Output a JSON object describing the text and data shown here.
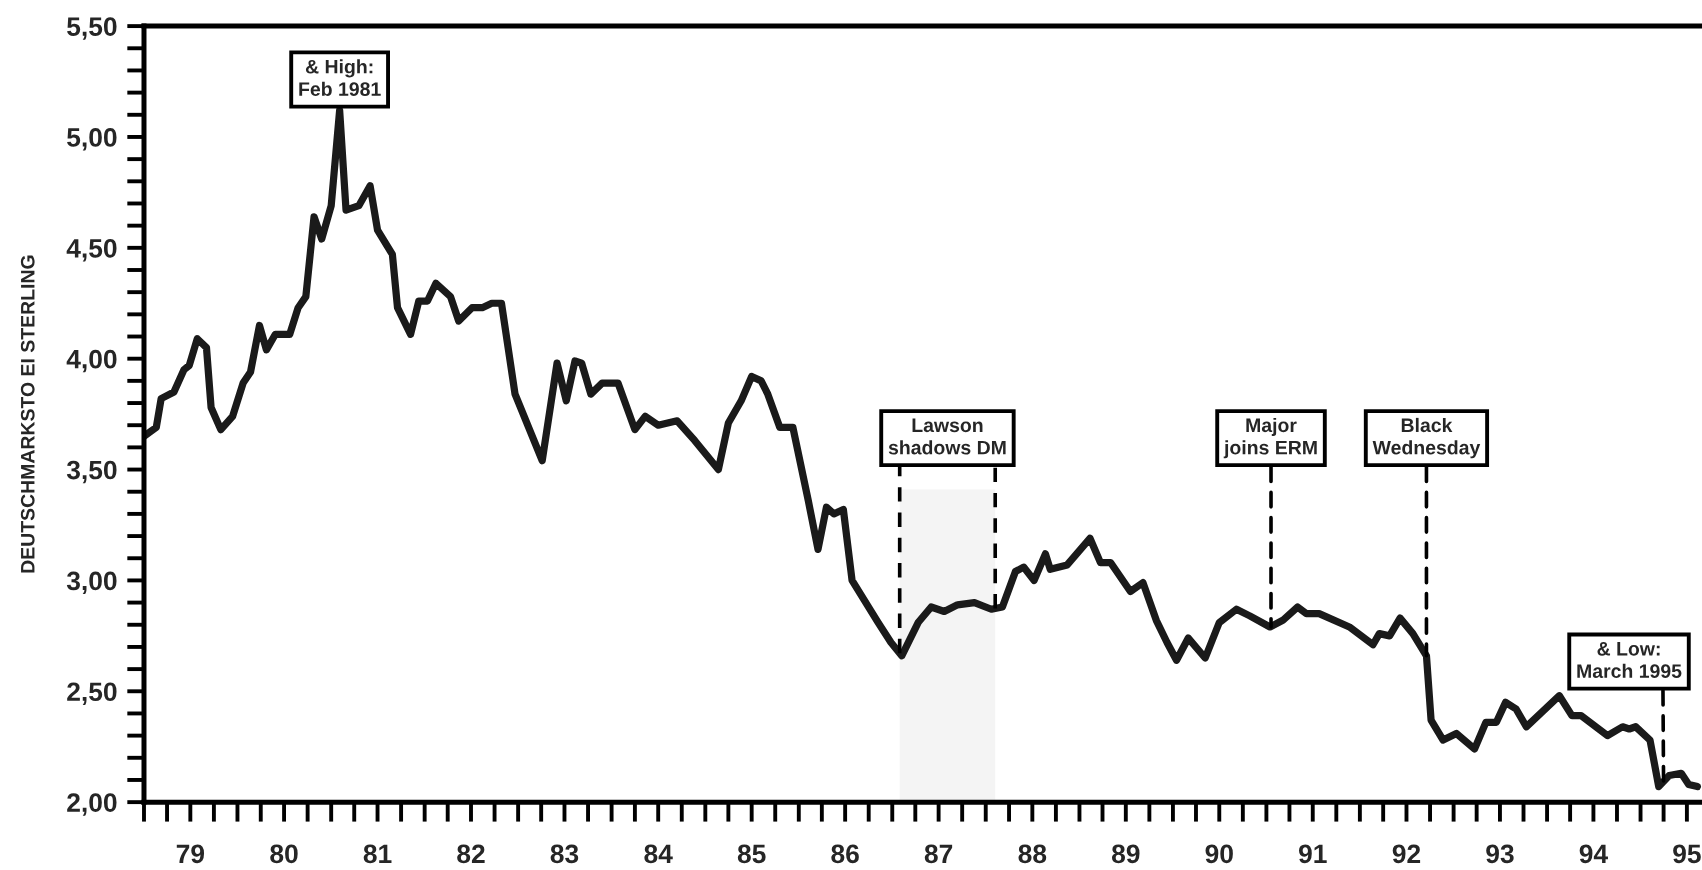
{
  "chart_data": {
    "type": "line",
    "ylabel": "DEUTSCHMARKSTO EI STERLING",
    "x": [
      "1979-01-01",
      "1979-02-18",
      "1979-03-09",
      "1979-04-28",
      "1979-06-06",
      "1979-06-27",
      "1979-07-28",
      "1979-09-02",
      "1979-09-20",
      "1979-10-28",
      "1979-12-13",
      "1980-01-23",
      "1980-02-21",
      "1980-03-27",
      "1980-04-23",
      "1980-05-28",
      "1980-07-23",
      "1980-08-25",
      "1980-09-24",
      "1980-10-26",
      "1980-11-25",
      "1981-01-01",
      "1981-02-03",
      "1981-02-28",
      "1981-04-19",
      "1981-06-02",
      "1981-07-01",
      "1981-08-28",
      "1981-09-17",
      "1981-11-07",
      "1981-12-09",
      "1982-01-12",
      "1982-02-14",
      "1982-04-12",
      "1982-05-14",
      "1982-07-05",
      "1982-08-14",
      "1982-09-20",
      "1982-10-28",
      "1982-12-20",
      "1983-04-05",
      "1983-06-02",
      "1983-07-08",
      "1983-08-11",
      "1983-09-06",
      "1983-10-12",
      "1983-11-25",
      "1984-01-26",
      "1984-04-01",
      "1984-05-11",
      "1984-07-01",
      "1984-09-13",
      "1984-11-21",
      "1985-02-21",
      "1985-04-01",
      "1985-05-21",
      "1985-07-01",
      "1985-08-07",
      "1985-09-02",
      "1985-10-19",
      "1985-12-09",
      "1986-02-07",
      "1986-03-17",
      "1986-04-19",
      "1986-05-18",
      "1986-06-24",
      "1986-07-28",
      "1986-11-07",
      "1986-12-27",
      "1987-02-07",
      "1987-04-12",
      "1987-06-02",
      "1987-07-23",
      "1987-09-13",
      "1987-11-18",
      "1988-01-23",
      "1988-03-06",
      "1988-04-26",
      "1988-05-28",
      "1988-07-08",
      "1988-08-21",
      "1988-09-09",
      "1988-11-14",
      "1989-02-11",
      "1989-03-24",
      "1989-05-03",
      "1989-07-19",
      "1989-09-06",
      "1989-10-28",
      "1989-12-09",
      "1990-01-15",
      "1990-03-02",
      "1990-05-07",
      "1990-07-01",
      "1990-09-06",
      "1990-10-28",
      "1991-01-15",
      "1991-03-06",
      "1991-05-03",
      "1991-06-06",
      "1991-07-26",
      "1991-11-21",
      "1992-02-21",
      "1992-03-17",
      "1992-04-26",
      "1992-06-06",
      "1992-07-26",
      "1992-09-17",
      "1992-10-05",
      "1992-11-21",
      "1993-01-12",
      "1993-03-24",
      "1993-05-07",
      "1993-06-17",
      "1993-07-23",
      "1993-09-02",
      "1993-10-12",
      "1994-02-18",
      "1994-04-08",
      "1994-05-14",
      "1994-08-25",
      "1994-10-23",
      "1994-11-18",
      "1994-12-13",
      "1995-02-07",
      "1995-03-13",
      "1995-04-23",
      "1995-06-09",
      "1995-07-08",
      "1995-08-11"
    ],
    "series": [
      {
        "color": "#1a1a1a",
        "values": [
          3.65,
          3.69,
          3.82,
          3.85,
          3.95,
          3.97,
          4.09,
          4.05,
          3.78,
          3.68,
          3.74,
          3.89,
          3.94,
          4.15,
          4.04,
          4.11,
          4.11,
          4.23,
          4.28,
          4.64,
          4.54,
          4.69,
          5.12,
          4.67,
          4.69,
          4.78,
          4.58,
          4.47,
          4.23,
          4.11,
          4.26,
          4.26,
          4.34,
          4.28,
          4.17,
          4.23,
          4.23,
          4.25,
          4.25,
          3.84,
          3.54,
          3.98,
          3.81,
          3.99,
          3.98,
          3.84,
          3.89,
          3.89,
          3.68,
          3.74,
          3.7,
          3.72,
          3.63,
          3.5,
          3.71,
          3.81,
          3.92,
          3.9,
          3.84,
          3.69,
          3.69,
          3.36,
          3.14,
          3.33,
          3.3,
          3.32,
          3.0,
          2.81,
          2.72,
          2.66,
          2.81,
          2.88,
          2.86,
          2.89,
          2.9,
          2.87,
          2.88,
          3.04,
          3.06,
          3.0,
          3.12,
          3.05,
          3.07,
          3.19,
          3.08,
          3.08,
          2.95,
          2.99,
          2.82,
          2.72,
          2.64,
          2.74,
          2.65,
          2.81,
          2.87,
          2.84,
          2.79,
          2.82,
          2.88,
          2.85,
          2.85,
          2.79,
          2.71,
          2.76,
          2.75,
          2.83,
          2.76,
          2.66,
          2.37,
          2.28,
          2.31,
          2.24,
          2.36,
          2.36,
          2.45,
          2.42,
          2.34,
          2.48,
          2.39,
          2.39,
          2.3,
          2.34,
          2.33,
          2.34,
          2.28,
          2.07,
          2.12,
          2.13,
          2.08,
          2.07
        ]
      }
    ],
    "xlim": [
      "1979-01-01",
      "1995-08-29"
    ],
    "xticks": [
      {
        "value": "1979-01-01",
        "label": null
      },
      {
        "value": "1979-04-01",
        "label": null
      },
      {
        "value": "1979-07-01",
        "label": "79"
      },
      {
        "value": "1979-10-01",
        "label": null
      },
      {
        "value": "1980-01-01",
        "label": null
      },
      {
        "value": "1980-04-01",
        "label": null
      },
      {
        "value": "1980-07-01",
        "label": "80"
      },
      {
        "value": "1980-10-01",
        "label": null
      },
      {
        "value": "1981-01-01",
        "label": null
      },
      {
        "value": "1981-04-01",
        "label": null
      },
      {
        "value": "1981-07-01",
        "label": "81"
      },
      {
        "value": "1981-10-01",
        "label": null
      },
      {
        "value": "1982-01-01",
        "label": null
      },
      {
        "value": "1982-04-01",
        "label": null
      },
      {
        "value": "1982-07-01",
        "label": "82"
      },
      {
        "value": "1982-10-01",
        "label": null
      },
      {
        "value": "1983-01-01",
        "label": null
      },
      {
        "value": "1983-04-01",
        "label": null
      },
      {
        "value": "1983-07-01",
        "label": "83"
      },
      {
        "value": "1983-10-01",
        "label": null
      },
      {
        "value": "1984-01-01",
        "label": null
      },
      {
        "value": "1984-04-01",
        "label": null
      },
      {
        "value": "1984-07-01",
        "label": "84"
      },
      {
        "value": "1984-10-01",
        "label": null
      },
      {
        "value": "1985-01-01",
        "label": null
      },
      {
        "value": "1985-04-01",
        "label": null
      },
      {
        "value": "1985-07-01",
        "label": "85"
      },
      {
        "value": "1985-10-01",
        "label": null
      },
      {
        "value": "1986-01-01",
        "label": null
      },
      {
        "value": "1986-04-01",
        "label": null
      },
      {
        "value": "1986-07-01",
        "label": "86"
      },
      {
        "value": "1986-10-01",
        "label": null
      },
      {
        "value": "1987-01-01",
        "label": null
      },
      {
        "value": "1987-04-01",
        "label": null
      },
      {
        "value": "1987-07-01",
        "label": "87"
      },
      {
        "value": "1987-10-01",
        "label": null
      },
      {
        "value": "1988-01-01",
        "label": null
      },
      {
        "value": "1988-04-01",
        "label": null
      },
      {
        "value": "1988-07-01",
        "label": "88"
      },
      {
        "value": "1988-10-01",
        "label": null
      },
      {
        "value": "1989-01-01",
        "label": null
      },
      {
        "value": "1989-04-01",
        "label": null
      },
      {
        "value": "1989-07-01",
        "label": "89"
      },
      {
        "value": "1989-10-01",
        "label": null
      },
      {
        "value": "1990-01-01",
        "label": null
      },
      {
        "value": "1990-04-01",
        "label": null
      },
      {
        "value": "1990-07-01",
        "label": "90"
      },
      {
        "value": "1990-10-01",
        "label": null
      },
      {
        "value": "1991-01-01",
        "label": null
      },
      {
        "value": "1991-04-01",
        "label": null
      },
      {
        "value": "1991-07-01",
        "label": "91"
      },
      {
        "value": "1991-10-01",
        "label": null
      },
      {
        "value": "1992-01-01",
        "label": null
      },
      {
        "value": "1992-04-01",
        "label": null
      },
      {
        "value": "1992-07-01",
        "label": "92"
      },
      {
        "value": "1992-10-01",
        "label": null
      },
      {
        "value": "1993-01-01",
        "label": null
      },
      {
        "value": "1993-04-01",
        "label": null
      },
      {
        "value": "1993-07-01",
        "label": "93"
      },
      {
        "value": "1993-10-01",
        "label": null
      },
      {
        "value": "1994-01-01",
        "label": null
      },
      {
        "value": "1994-04-01",
        "label": null
      },
      {
        "value": "1994-07-01",
        "label": "94"
      },
      {
        "value": "1994-10-01",
        "label": null
      },
      {
        "value": "1995-01-01",
        "label": null
      },
      {
        "value": "1995-04-01",
        "label": null
      },
      {
        "value": "1995-07-01",
        "label": "95"
      }
    ],
    "ylim": [
      2.0,
      5.5
    ],
    "yticks": [
      {
        "value": 2.0,
        "label": "2,00"
      },
      {
        "value": 2.1,
        "label": null
      },
      {
        "value": 2.2,
        "label": null
      },
      {
        "value": 2.3,
        "label": null
      },
      {
        "value": 2.4,
        "label": null
      },
      {
        "value": 2.5,
        "label": "2,50"
      },
      {
        "value": 2.6,
        "label": null
      },
      {
        "value": 2.7,
        "label": null
      },
      {
        "value": 2.8,
        "label": null
      },
      {
        "value": 2.9,
        "label": null
      },
      {
        "value": 3.0,
        "label": "3,00"
      },
      {
        "value": 3.1,
        "label": null
      },
      {
        "value": 3.2,
        "label": null
      },
      {
        "value": 3.3,
        "label": null
      },
      {
        "value": 3.4,
        "label": null
      },
      {
        "value": 3.5,
        "label": "3,50"
      },
      {
        "value": 3.6,
        "label": null
      },
      {
        "value": 3.7,
        "label": null
      },
      {
        "value": 3.8,
        "label": null
      },
      {
        "value": 3.9,
        "label": null
      },
      {
        "value": 4.0,
        "label": "4,00"
      },
      {
        "value": 4.1,
        "label": null
      },
      {
        "value": 4.2,
        "label": null
      },
      {
        "value": 4.3,
        "label": null
      },
      {
        "value": 4.4,
        "label": null
      },
      {
        "value": 4.5,
        "label": "4,50"
      },
      {
        "value": 4.6,
        "label": null
      },
      {
        "value": 4.7,
        "label": null
      },
      {
        "value": 4.8,
        "label": null
      },
      {
        "value": 4.9,
        "label": null
      },
      {
        "value": 5.0,
        "label": "5,00"
      },
      {
        "value": 5.1,
        "label": null
      },
      {
        "value": 5.2,
        "label": null
      },
      {
        "value": 5.3,
        "label": null
      },
      {
        "value": 5.4,
        "label": null
      },
      {
        "value": 5.5,
        "label": "5,50"
      }
    ],
    "annotations": [
      {
        "text": "& High:\nFeb 1981",
        "x": "1981-02-03",
        "y": 5.12
      },
      {
        "text": "Major\njoins ERM",
        "x": "1991-01-19",
        "y": 2.79
      },
      {
        "text": "Black\nWednesday",
        "x": "1992-09-17",
        "y": 2.66
      },
      {
        "text": "& Low:\nMarch 1995",
        "x": "1995-04-01",
        "y": 2.07
      }
    ],
    "bands": [
      {
        "axis": "x",
        "from": "1987-01-30",
        "to": "1988-02-07",
        "label": "Lawson\nshadows DM",
        "color": "#f4f4f4"
      }
    ],
    "grid": false,
    "legend": false,
    "marker": "none",
    "line_style": "solid"
  }
}
